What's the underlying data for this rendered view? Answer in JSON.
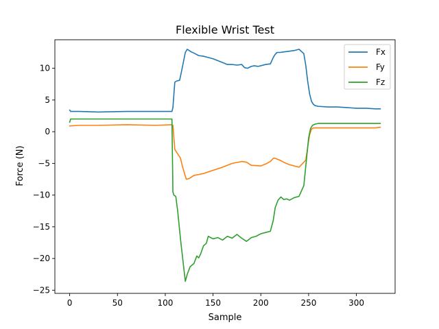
{
  "chart_data": {
    "type": "line",
    "title": "Flexible Wrist Test",
    "xlabel": "Sample",
    "ylabel": "Force (N)",
    "xlim": [
      -15.5,
      340.5
    ],
    "ylim": [
      -25.5,
      14.5
    ],
    "xticks": [
      0,
      50,
      100,
      150,
      200,
      250,
      300
    ],
    "yticks": [
      -25,
      -20,
      -15,
      -10,
      -5,
      0,
      5,
      10
    ],
    "grid": false,
    "legend_position": "top-right",
    "series": [
      {
        "name": "Fx",
        "color": "#1f77b4",
        "x": [
          0,
          1,
          10,
          30,
          60,
          90,
          107,
          108,
          110,
          112,
          115,
          117,
          119,
          121,
          123,
          127,
          130,
          135,
          140,
          145,
          150,
          155,
          160,
          165,
          170,
          175,
          180,
          183,
          186,
          190,
          193,
          197,
          200,
          205,
          210,
          213,
          215,
          217,
          220,
          225,
          230,
          235,
          240,
          245,
          247,
          249,
          251,
          253,
          255,
          257,
          260,
          270,
          280,
          290,
          300,
          310,
          320,
          325
        ],
        "y": [
          3.4,
          3.2,
          3.2,
          3.1,
          3.2,
          3.2,
          3.2,
          3.8,
          7.8,
          8.0,
          8.1,
          9.5,
          11.0,
          12.5,
          13.0,
          12.6,
          12.4,
          12.0,
          11.9,
          11.7,
          11.5,
          11.2,
          10.9,
          10.6,
          10.6,
          10.5,
          10.6,
          10.1,
          10.0,
          10.3,
          10.4,
          10.3,
          10.4,
          10.6,
          10.7,
          11.7,
          12.2,
          12.5,
          12.5,
          12.6,
          12.7,
          12.8,
          13.0,
          12.3,
          10.5,
          8.0,
          6.0,
          4.8,
          4.3,
          4.1,
          4.0,
          3.9,
          3.9,
          3.8,
          3.7,
          3.7,
          3.6,
          3.6
        ]
      },
      {
        "name": "Fy",
        "color": "#ff7f0e",
        "x": [
          0,
          10,
          30,
          60,
          90,
          107,
          108,
          110,
          113,
          116,
          118,
          120,
          122,
          125,
          130,
          140,
          150,
          160,
          170,
          180,
          185,
          190,
          200,
          205,
          210,
          213,
          215,
          220,
          225,
          230,
          240,
          247,
          249,
          251,
          253,
          255,
          258,
          265,
          280,
          300,
          320,
          325
        ],
        "y": [
          0.9,
          1.0,
          1.0,
          1.1,
          1.0,
          1.1,
          1.0,
          -2.8,
          -3.5,
          -4.2,
          -5.5,
          -6.5,
          -7.5,
          -7.4,
          -6.9,
          -6.6,
          -6.1,
          -5.6,
          -5.0,
          -4.7,
          -4.8,
          -5.3,
          -5.4,
          -5.1,
          -4.7,
          -4.2,
          -4.2,
          -4.5,
          -4.9,
          -5.2,
          -5.6,
          -4.5,
          -2.5,
          -0.5,
          0.4,
          0.6,
          0.6,
          0.6,
          0.6,
          0.6,
          0.6,
          0.7
        ]
      },
      {
        "name": "Fz",
        "color": "#2ca02c",
        "x": [
          0,
          1,
          10,
          30,
          60,
          90,
          107,
          108,
          109,
          111,
          113,
          116,
          119,
          121,
          123,
          126,
          130,
          133,
          135,
          137,
          140,
          143,
          145,
          150,
          155,
          160,
          165,
          170,
          175,
          180,
          185,
          190,
          195,
          200,
          205,
          210,
          213,
          215,
          218,
          221,
          224,
          227,
          230,
          235,
          240,
          245,
          248,
          250,
          252,
          254,
          257,
          260,
          270,
          280,
          290,
          300,
          310,
          320,
          325
        ],
        "y": [
          1.5,
          2.0,
          2.0,
          2.0,
          2.0,
          2.0,
          2.0,
          -9.5,
          -10.0,
          -10.2,
          -12.5,
          -17.0,
          -21.0,
          -23.6,
          -22.5,
          -21.3,
          -20.8,
          -19.6,
          -19.9,
          -19.3,
          -18.0,
          -17.6,
          -16.5,
          -16.9,
          -16.7,
          -17.1,
          -16.5,
          -16.8,
          -16.2,
          -16.8,
          -17.3,
          -16.7,
          -16.5,
          -16.1,
          -15.9,
          -15.7,
          -14.0,
          -12.0,
          -10.8,
          -10.3,
          -10.7,
          -10.6,
          -10.8,
          -10.4,
          -10.2,
          -8.5,
          -4.0,
          -1.0,
          0.5,
          1.0,
          1.2,
          1.3,
          1.3,
          1.3,
          1.3,
          1.3,
          1.3,
          1.3,
          1.3
        ]
      }
    ]
  }
}
